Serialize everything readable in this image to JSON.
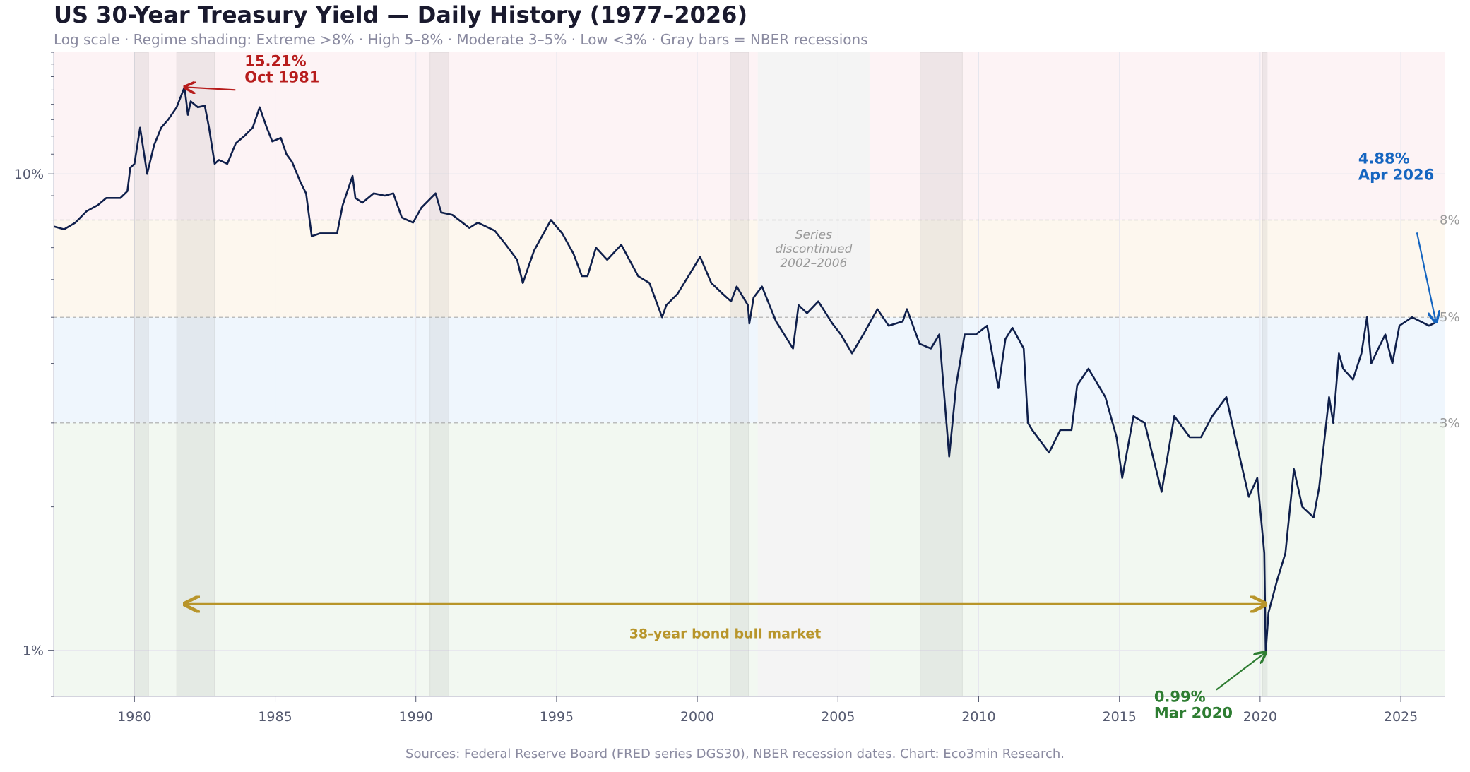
{
  "chart_data": {
    "type": "line",
    "title": "US 30-Year Treasury Yield — Daily History (1977–2026)",
    "subtitle": "Log scale · Regime shading: Extreme >8% · High 5–8% · Moderate 3–5% · Low <3% · Gray bars = NBER recessions",
    "source": "Sources: Federal Reserve Board (FRED series DGS30), NBER recession dates. Chart: Eco3min Research.",
    "y_scale": "log",
    "xlim": [
      1977.13,
      2026.58
    ],
    "ylim": [
      0.8,
      18
    ],
    "x_ticks": [
      1980,
      1985,
      1990,
      1995,
      2000,
      2005,
      2010,
      2015,
      2020,
      2025
    ],
    "y_ticks": [
      {
        "value": 1,
        "label": "1%"
      },
      {
        "value": 10,
        "label": "10%"
      }
    ],
    "grid": true,
    "line_color": "#0f1f4b",
    "regimes": [
      {
        "name": "Extreme",
        "from": 8,
        "to": 18,
        "color": "#fdf3f5"
      },
      {
        "name": "High",
        "from": 5,
        "to": 8,
        "color": "#fdf7ee"
      },
      {
        "name": "Moderate",
        "from": 3,
        "to": 5,
        "color": "#eff6fd"
      },
      {
        "name": "Low",
        "from": 0.8,
        "to": 3,
        "color": "#f2f8f1"
      }
    ],
    "threshold_labels": [
      {
        "value": 8,
        "label": "8%"
      },
      {
        "value": 5,
        "label": "5%"
      },
      {
        "value": 3,
        "label": "3%"
      }
    ],
    "recessions": [
      [
        1980.0,
        1980.5
      ],
      [
        1981.5,
        1982.85
      ],
      [
        1990.5,
        1991.17
      ],
      [
        2001.17,
        2001.83
      ],
      [
        2007.92,
        2009.42
      ],
      [
        2020.08,
        2020.25
      ]
    ],
    "discontinued": {
      "range": [
        2002.15,
        2006.12
      ],
      "label": [
        "Series",
        "discontinued",
        "2002–2006"
      ]
    },
    "annotations": [
      {
        "id": "peak",
        "x": 1981.78,
        "y": 15.21,
        "lines": [
          "15.21%",
          "Oct 1981"
        ],
        "color": "#b71c1c"
      },
      {
        "id": "trough",
        "x": 2020.2,
        "y": 0.99,
        "lines": [
          "0.99%",
          "Mar 2020"
        ],
        "color": "#2e7d32"
      },
      {
        "id": "latest",
        "x": 2026.25,
        "y": 4.88,
        "lines": [
          "4.88%",
          "Apr 2026"
        ],
        "color": "#1565c0"
      }
    ],
    "span": {
      "from": 1981.78,
      "to": 2020.2,
      "y": 1.25,
      "label": "38-year bond bull market",
      "color": "#b8952a"
    },
    "series": [
      {
        "x": [
          1977.15,
          1977.5,
          1977.9,
          1978.3,
          1978.7,
          1979.0,
          1979.5,
          1979.75,
          1979.85,
          1980.0,
          1980.2,
          1980.45,
          1980.7,
          1980.95,
          1981.2,
          1981.5,
          1981.78,
          1981.9,
          1982.0,
          1982.25,
          1982.5,
          1982.65,
          1982.85,
          1983.0,
          1983.3,
          1983.6,
          1983.9,
          1984.2,
          1984.45,
          1984.7,
          1984.9,
          1985.2,
          1985.4,
          1985.6,
          1985.9,
          1986.1,
          1986.3,
          1986.6,
          1986.9,
          1987.2,
          1987.4,
          1987.75,
          1987.85,
          1988.1,
          1988.5,
          1988.9,
          1989.2,
          1989.5,
          1989.9,
          1990.2,
          1990.7,
          1990.9,
          1991.3,
          1991.9,
          1992.2,
          1992.8,
          1993.2,
          1993.6,
          1993.8,
          1994.2,
          1994.8,
          1995.2,
          1995.6,
          1995.9,
          1996.1,
          1996.4,
          1996.8,
          1997.3,
          1997.9,
          1998.3,
          1998.75,
          1998.9,
          1999.3,
          1999.9,
          2000.1,
          2000.5,
          2000.9,
          2001.2,
          2001.4,
          2001.8,
          2001.85,
          2002.0,
          2002.3,
          2002.8,
          2003.4,
          2003.6,
          2003.9,
          2004.3,
          2004.8,
          2005.1,
          2005.5,
          2005.9,
          2006.4,
          2006.8,
          2007.3,
          2007.45,
          2007.9,
          2008.3,
          2008.6,
          2008.95,
          2009.2,
          2009.5,
          2009.9,
          2010.3,
          2010.7,
          2010.95,
          2011.2,
          2011.6,
          2011.75,
          2011.9,
          2012.5,
          2012.9,
          2013.3,
          2013.5,
          2013.9,
          2014.5,
          2014.9,
          2015.1,
          2015.5,
          2015.9,
          2016.5,
          2016.95,
          2017.5,
          2017.9,
          2018.3,
          2018.8,
          2019.0,
          2019.6,
          2019.9,
          2020.15,
          2020.2,
          2020.3,
          2020.6,
          2020.9,
          2021.2,
          2021.5,
          2021.9,
          2022.1,
          2022.45,
          2022.6,
          2022.8,
          2022.95,
          2023.3,
          2023.6,
          2023.8,
          2023.95,
          2024.2,
          2024.45,
          2024.7,
          2024.95,
          2025.4,
          2025.7,
          2026.0,
          2026.25
        ],
        "y": [
          7.75,
          7.65,
          7.9,
          8.35,
          8.6,
          8.9,
          8.9,
          9.2,
          10.3,
          10.5,
          12.5,
          10.0,
          11.5,
          12.5,
          13.0,
          13.8,
          15.21,
          13.3,
          14.2,
          13.8,
          13.9,
          12.5,
          10.5,
          10.7,
          10.5,
          11.6,
          12.0,
          12.5,
          13.8,
          12.5,
          11.7,
          11.9,
          11.0,
          10.6,
          9.6,
          9.1,
          7.4,
          7.5,
          7.5,
          7.5,
          8.6,
          9.9,
          8.9,
          8.7,
          9.1,
          9.0,
          9.1,
          8.1,
          7.9,
          8.5,
          9.1,
          8.3,
          8.2,
          7.7,
          7.9,
          7.6,
          7.1,
          6.6,
          5.9,
          6.9,
          8.0,
          7.5,
          6.8,
          6.1,
          6.1,
          7.0,
          6.6,
          7.1,
          6.1,
          5.9,
          5.0,
          5.3,
          5.6,
          6.4,
          6.7,
          5.9,
          5.6,
          5.4,
          5.8,
          5.3,
          4.85,
          5.5,
          5.8,
          4.9,
          4.3,
          5.3,
          5.1,
          5.4,
          4.85,
          4.6,
          4.2,
          4.6,
          5.2,
          4.8,
          4.9,
          5.2,
          4.4,
          4.3,
          4.6,
          2.55,
          3.6,
          4.6,
          4.6,
          4.8,
          3.55,
          4.5,
          4.75,
          4.3,
          3.0,
          2.9,
          2.6,
          2.9,
          2.9,
          3.6,
          3.9,
          3.4,
          2.8,
          2.3,
          3.1,
          3.0,
          2.15,
          3.1,
          2.8,
          2.8,
          3.1,
          3.4,
          3.0,
          2.1,
          2.3,
          1.6,
          0.99,
          1.2,
          1.4,
          1.6,
          2.4,
          2.0,
          1.9,
          2.2,
          3.4,
          3.0,
          4.2,
          3.9,
          3.7,
          4.2,
          5.0,
          4.0,
          4.3,
          4.6,
          4.0,
          4.8,
          5.0,
          4.9,
          4.8,
          4.88
        ]
      }
    ]
  }
}
